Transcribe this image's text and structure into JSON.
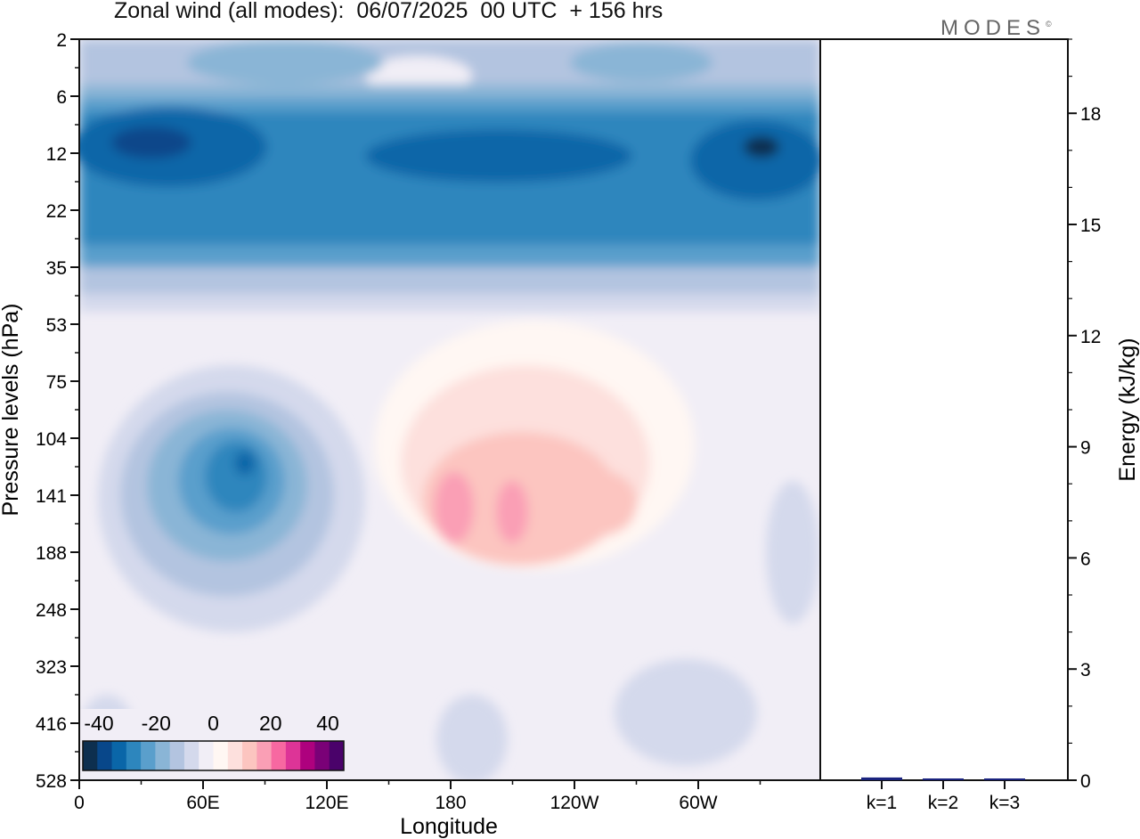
{
  "title": "Zonal wind (all modes):  06/07/2025  00 UTC  + 156 hrs",
  "logo": "MODES",
  "chart_data": [
    {
      "type": "heatmap",
      "title": "Zonal wind (all modes):  06/07/2025  00 UTC  + 156 hrs",
      "xlabel": "Longitude",
      "ylabel": "Pressure levels (hPa)",
      "x_ticks": [
        "0",
        "60E",
        "120E",
        "180",
        "120W",
        "60W"
      ],
      "y_ticks": [
        "2",
        "6",
        "12",
        "22",
        "35",
        "53",
        "75",
        "104",
        "141",
        "188",
        "248",
        "323",
        "416",
        "528"
      ],
      "colorbar": {
        "labels": [
          "-40",
          "-20",
          "0",
          "20",
          "40"
        ],
        "colors": [
          "#0d2f4f",
          "#08478a",
          "#0a66a8",
          "#2d86bd",
          "#5a9fcc",
          "#8ab5d6",
          "#b3c4e0",
          "#d4d9ec",
          "#f1eef6",
          "#fff7f3",
          "#fde0dd",
          "#fcc5c0",
          "#fa9fb5",
          "#f768a1",
          "#dd3497",
          "#ae017e",
          "#7a0177",
          "#4a026a"
        ]
      }
    },
    {
      "type": "bar",
      "ylabel": "Energy (kJ/kg)",
      "categories": [
        "k=1",
        "k=2",
        "k=3"
      ],
      "values": [
        0.05,
        0.02,
        0.01
      ],
      "ylim": [
        0,
        20
      ],
      "y_ticks": [
        "0",
        "3",
        "6",
        "9",
        "12",
        "15",
        "18"
      ]
    }
  ]
}
